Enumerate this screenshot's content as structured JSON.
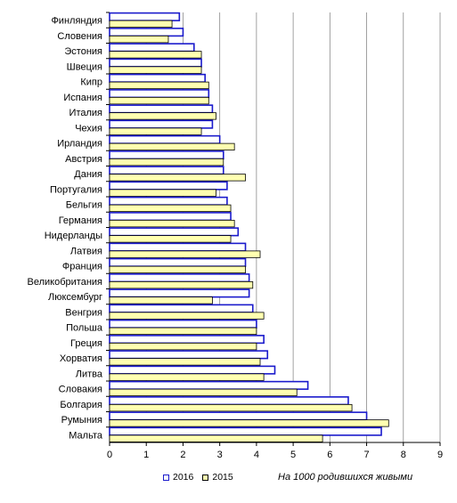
{
  "chart_data": {
    "type": "bar",
    "orientation": "horizontal",
    "categories": [
      "Финляндия",
      "Словения",
      "Эстония",
      "Швеция",
      "Кипр",
      "Испания",
      "Италия",
      "Чехия",
      "Ирландия",
      "Австрия",
      "Дания",
      "Португалия",
      "Бельгия",
      "Германия",
      "Нидерланды",
      "Латвия",
      "Франция",
      "Великобритания",
      "Люксембург",
      "Венгрия",
      "Польша",
      "Греция",
      "Хорватия",
      "Литва",
      "Словакия",
      "Болгария",
      "Румыния",
      "Мальта"
    ],
    "series": [
      {
        "name": "2016",
        "color": "#1a1acc",
        "fill": "#ffffff",
        "values": [
          1.9,
          2.0,
          2.3,
          2.5,
          2.6,
          2.7,
          2.8,
          2.8,
          3.0,
          3.1,
          3.1,
          3.2,
          3.2,
          3.3,
          3.5,
          3.7,
          3.7,
          3.8,
          3.8,
          3.9,
          4.0,
          4.2,
          4.3,
          4.5,
          5.4,
          6.5,
          7.0,
          7.4
        ]
      },
      {
        "name": "2015",
        "color": "#000000",
        "fill": "#ffffb0",
        "values": [
          1.7,
          1.6,
          2.5,
          2.5,
          2.7,
          2.7,
          2.9,
          2.5,
          3.4,
          3.1,
          3.7,
          2.9,
          3.3,
          3.4,
          3.3,
          4.1,
          3.7,
          3.9,
          2.8,
          4.2,
          4.0,
          4.0,
          4.1,
          4.2,
          5.1,
          6.6,
          7.6,
          5.8
        ]
      }
    ],
    "xlim": [
      0,
      9
    ],
    "xticks": [
      "0",
      "1",
      "2",
      "3",
      "4",
      "5",
      "6",
      "7",
      "8",
      "9"
    ],
    "grid": true,
    "legend_position": "bottom",
    "note": "На 1000 родившихся живыми"
  }
}
